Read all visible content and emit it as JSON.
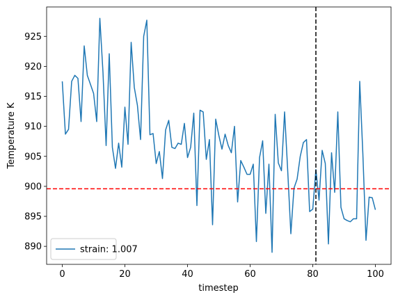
{
  "chart_data": {
    "type": "line",
    "xlabel": "timestep",
    "ylabel": "Temperature K",
    "x": [
      0,
      1,
      2,
      3,
      4,
      5,
      6,
      7,
      8,
      9,
      10,
      11,
      12,
      13,
      14,
      15,
      16,
      17,
      18,
      19,
      20,
      21,
      22,
      23,
      24,
      25,
      26,
      27,
      28,
      29,
      30,
      31,
      32,
      33,
      34,
      35,
      36,
      37,
      38,
      39,
      40,
      41,
      42,
      43,
      44,
      45,
      46,
      47,
      48,
      49,
      50,
      51,
      52,
      53,
      54,
      55,
      56,
      57,
      58,
      59,
      60,
      61,
      62,
      63,
      64,
      65,
      66,
      67,
      68,
      69,
      70,
      71,
      72,
      73,
      74,
      75,
      76,
      77,
      78,
      79,
      80,
      81,
      82,
      83,
      84,
      85,
      86,
      87,
      88,
      89,
      90,
      91,
      92,
      93,
      94,
      95,
      96,
      97,
      98,
      99,
      100
    ],
    "series": [
      {
        "name": "strain: 1.007",
        "color": "#1f77b4",
        "values": [
          917.5,
          908.7,
          909.5,
          917.5,
          918.5,
          918,
          910.8,
          923.4,
          918.5,
          917,
          915.5,
          910.8,
          928,
          919,
          906.8,
          922.1,
          906.5,
          903,
          907.2,
          903.2,
          913.2,
          907,
          924,
          916.5,
          913.5,
          907.8,
          925,
          927.7,
          908.6,
          908.8,
          903.8,
          905.8,
          901.3,
          909.4,
          911,
          906.5,
          906.3,
          907.2,
          907,
          910.5,
          904.8,
          906.5,
          912.2,
          896.8,
          912.7,
          912.4,
          904.5,
          907.8,
          893.6,
          911.2,
          908.5,
          906.2,
          908.7,
          906.8,
          905.6,
          910,
          897.4,
          904.3,
          903.2,
          902,
          902,
          903.7,
          890.8,
          904.8,
          907.6,
          895.5,
          903.7,
          889,
          912,
          903.9,
          902.6,
          912.4,
          902.6,
          892.1,
          899.7,
          901.2,
          905,
          907.3,
          907.8,
          895.8,
          896.2,
          902.8,
          897.7,
          906,
          903.8,
          890.4,
          905.6,
          899,
          912.4,
          896.5,
          894.6,
          894.3,
          894.1,
          894.6,
          894.6,
          917.5,
          905.4,
          891,
          898.2,
          898.1,
          896.1
        ]
      }
    ],
    "xlim": [
      -5,
      105
    ],
    "ylim": [
      887,
      929.9
    ],
    "xticks": [
      0,
      20,
      40,
      60,
      80,
      100
    ],
    "yticks": [
      890,
      895,
      900,
      905,
      910,
      915,
      920,
      925
    ],
    "reference_lines": [
      {
        "axis": "y",
        "value": 899.6,
        "color": "#ff0000"
      },
      {
        "axis": "x",
        "value": 81,
        "color": "#000000"
      }
    ],
    "legend": "lower left"
  }
}
